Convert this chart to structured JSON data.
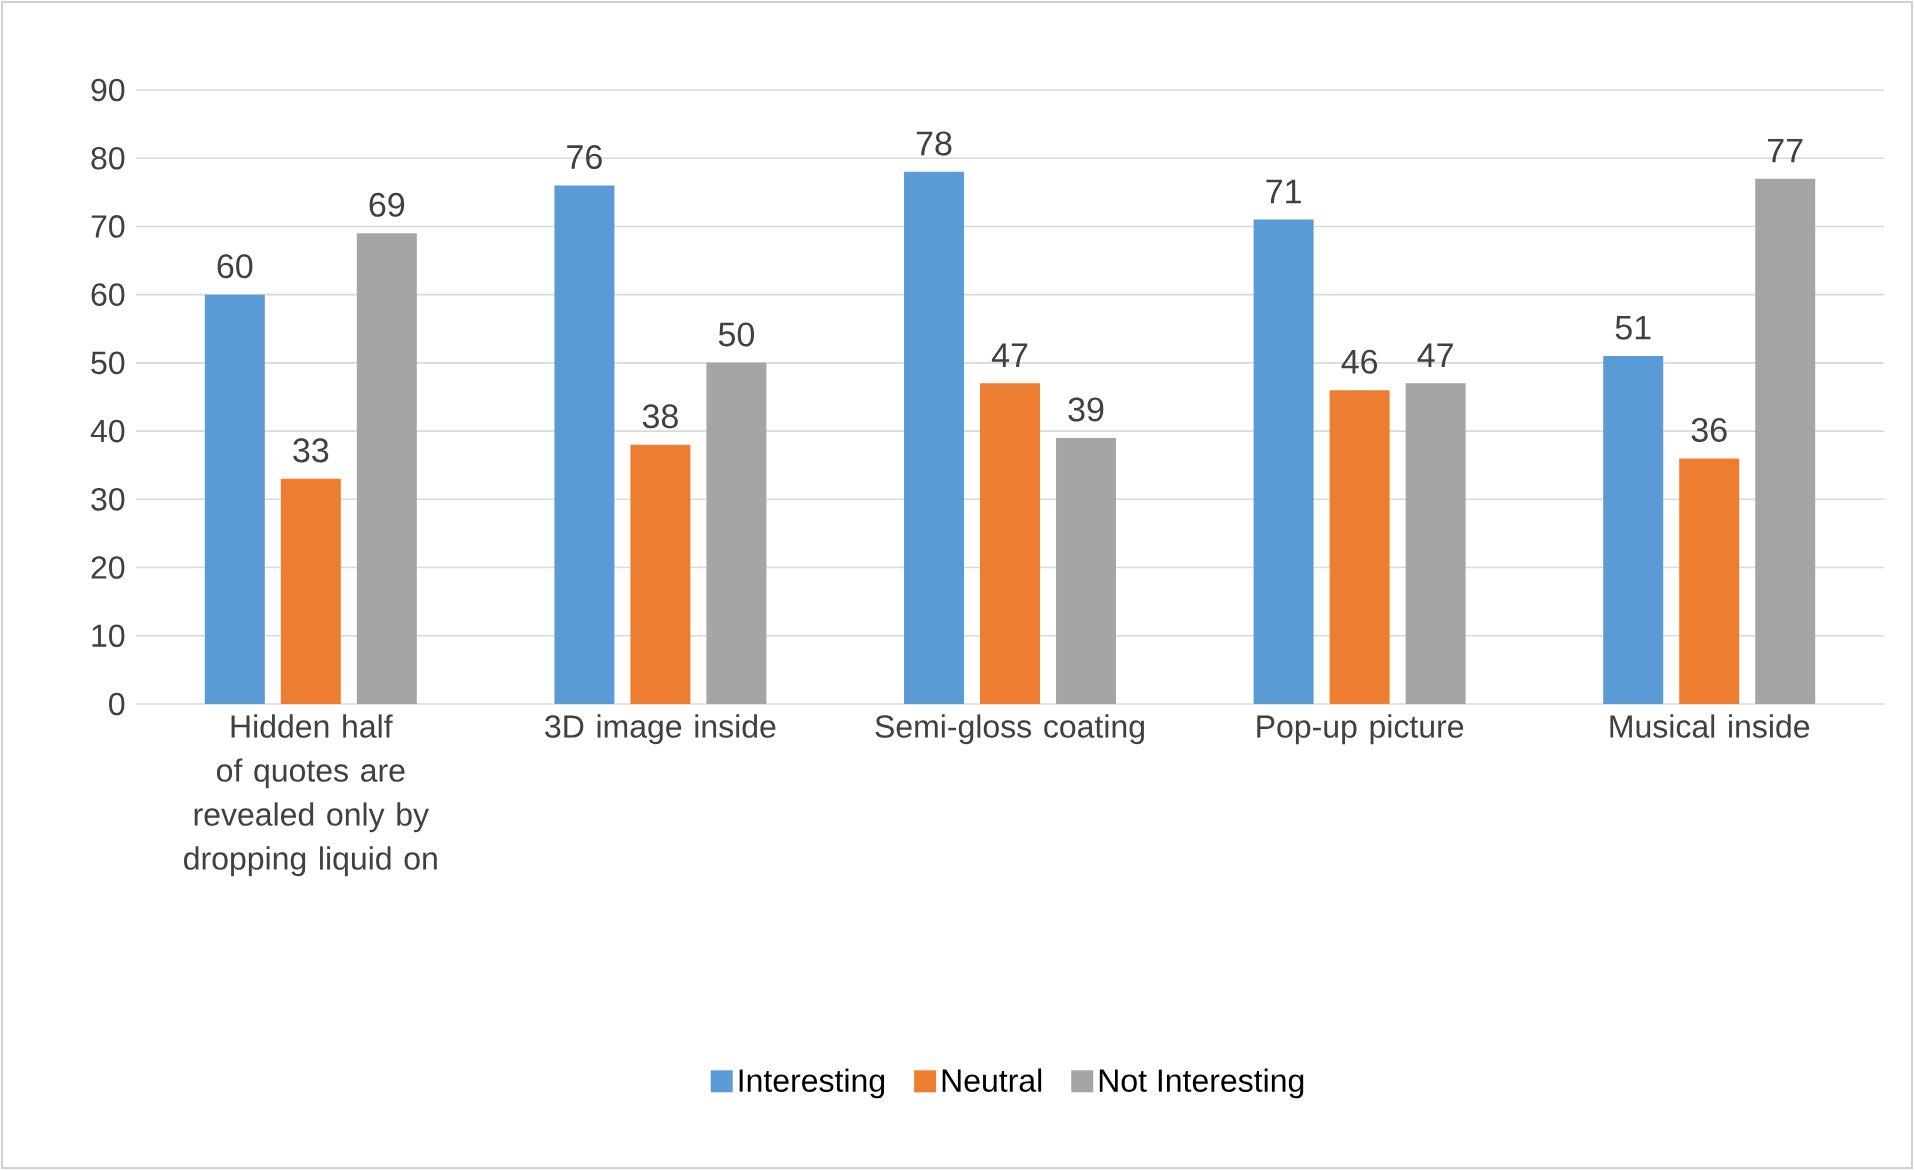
{
  "chart_data": {
    "type": "bar",
    "categories": [
      "Hidden half of quotes are revealed only by dropping liquid on",
      "3D image inside",
      "Semi-gloss coating",
      "Pop-up picture",
      "Musical inside"
    ],
    "series": [
      {
        "name": "Interesting",
        "color": "#5b9bd5",
        "values": [
          60,
          76,
          78,
          71,
          51
        ]
      },
      {
        "name": "Neutral",
        "color": "#ed7d31",
        "values": [
          33,
          38,
          47,
          46,
          36
        ]
      },
      {
        "name": "Not Interesting",
        "color": "#a5a5a5",
        "values": [
          69,
          50,
          39,
          47,
          77
        ]
      }
    ],
    "ylim": [
      0,
      90
    ],
    "yticks": [
      0,
      10,
      20,
      30,
      40,
      50,
      60,
      70,
      80,
      90
    ],
    "grid": "y",
    "legend": "bottom",
    "data_labels": true
  }
}
